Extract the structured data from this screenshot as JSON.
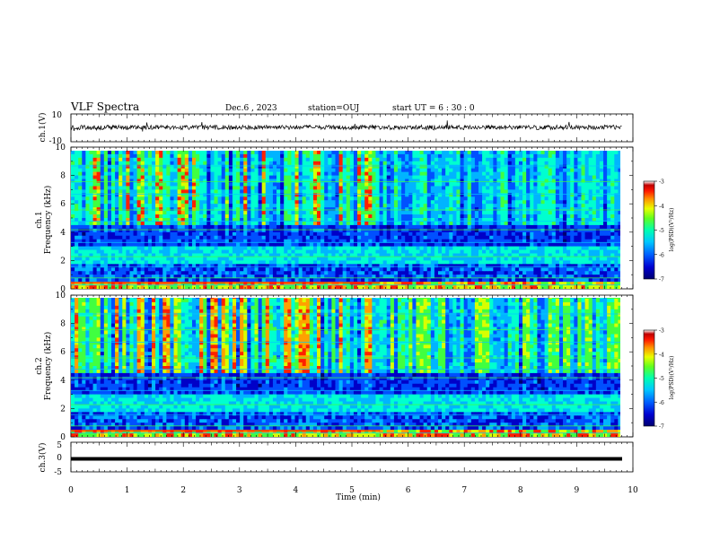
{
  "header": {
    "title": "VLF Spectra",
    "date": "Dec.6 , 2023",
    "station": "station=OUJ",
    "start_ut": "start UT =  6 : 30 : 0"
  },
  "chart_data": [
    {
      "type": "line",
      "name": "waveform-ch1",
      "ylabel": "ch.1(V)",
      "ylim": [
        -10,
        10
      ],
      "yticks": [
        "10",
        "-10"
      ],
      "xlim": [
        0,
        10
      ]
    },
    {
      "type": "heatmap",
      "name": "spectrogram-ch1",
      "ylabel_line1": "ch.1",
      "ylabel_line2": "Frequency (kHz)",
      "ylim": [
        0,
        10
      ],
      "yticks": [
        "0",
        "2",
        "4",
        "6",
        "8",
        "10"
      ],
      "xlim": [
        0,
        9.8
      ],
      "colorbar": {
        "label": "log(PSD)(V²/Hz)",
        "range": [
          -7,
          -3
        ],
        "ticks": [
          "-3",
          "-4",
          "-5",
          "-6",
          "-7"
        ]
      }
    },
    {
      "type": "heatmap",
      "name": "spectrogram-ch2",
      "ylabel_line1": "ch.2",
      "ylabel_line2": "Frequency (kHz)",
      "ylim": [
        0,
        10
      ],
      "yticks": [
        "0",
        "2",
        "4",
        "6",
        "8",
        "10"
      ],
      "xlim": [
        0,
        9.8
      ],
      "colorbar": {
        "label": "log(PSD)(V²/Hz)",
        "range": [
          -7,
          -3
        ],
        "ticks": [
          "-3",
          "-4",
          "-5",
          "-6",
          "-7"
        ]
      }
    },
    {
      "type": "line",
      "name": "waveform-ch3",
      "ylabel": "ch.3(V)",
      "ylim": [
        -5,
        5
      ],
      "yticks": [
        "5",
        "0",
        "-5"
      ],
      "xlim": [
        0,
        10
      ],
      "constant_level": -1
    }
  ],
  "xaxis": {
    "label": "Time (min)",
    "ticks": [
      "0",
      "1",
      "2",
      "3",
      "4",
      "5",
      "6",
      "7",
      "8",
      "9",
      "10"
    ],
    "range": [
      0,
      10
    ]
  },
  "colormap": [
    "#000070",
    "#0000c8",
    "#0050ff",
    "#00b4ff",
    "#00ffd0",
    "#40ff40",
    "#d8ff00",
    "#ffa000",
    "#ff2000",
    "#c00000",
    "#ffffff"
  ]
}
